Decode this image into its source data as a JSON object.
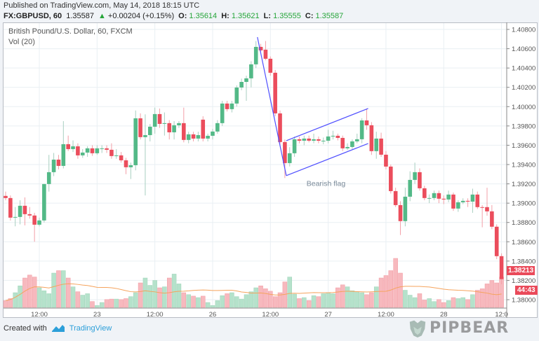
{
  "header": {
    "published": "Published on TradingView.com, May 14, 2018 18:15 UTC",
    "symbol": "FX:GBPUSD, 60",
    "last": "1.35587",
    "change_arrow": "▲",
    "change": "+0.00204 (+0.15%)",
    "o_label": "O:",
    "o": "1.35614",
    "h_label": "H:",
    "h": "1.35621",
    "l_label": "L:",
    "l": "1.35555",
    "c_label": "C:",
    "c": "1.35587"
  },
  "legend": {
    "title": "British Pound/U.S. Dollar, 60, FXCM",
    "volume": "Vol (20)"
  },
  "price_tag": "1.38213",
  "countdown": "44:43",
  "footer": {
    "created_with": "Created with",
    "brand": "TradingView"
  },
  "watermark": "PIPBEAR",
  "colors": {
    "up": "#53b987",
    "down": "#eb4d5c",
    "up_vol": "#b5e2cb",
    "down_vol": "#f7b9be",
    "vol_ma": "#f5a35c",
    "drawing": "#5050ff",
    "grid": "#e9eff3"
  },
  "chart_data": {
    "type": "candlestick",
    "ylim": [
      1.38,
      1.408
    ],
    "y_ticks": [
      "1.38000",
      "1.38200",
      "1.38400",
      "1.38600",
      "1.38800",
      "1.39000",
      "1.39200",
      "1.39400",
      "1.39600",
      "1.39800",
      "1.40000",
      "1.40200",
      "1.40400",
      "1.40600",
      "1.40800"
    ],
    "x_ticks": [
      {
        "label": "12:00",
        "bar": 7
      },
      {
        "label": "23",
        "bar": 19
      },
      {
        "label": "12:00",
        "bar": 31
      },
      {
        "label": "26",
        "bar": 43
      },
      {
        "label": "12:00",
        "bar": 55
      },
      {
        "label": "27",
        "bar": 67
      },
      {
        "label": "12:00",
        "bar": 79
      },
      {
        "label": "28",
        "bar": 91
      },
      {
        "label": "12:0",
        "bar": 103
      }
    ],
    "ohlc": [
      [
        1.39075,
        1.3912,
        1.3903,
        1.39053
      ],
      [
        1.39053,
        1.3908,
        1.3882,
        1.3885
      ],
      [
        1.3885,
        1.3896,
        1.3876,
        1.38857
      ],
      [
        1.38857,
        1.3903,
        1.3878,
        1.38973
      ],
      [
        1.38973,
        1.3906,
        1.3877,
        1.38886
      ],
      [
        1.38886,
        1.3896,
        1.3884,
        1.38872
      ],
      [
        1.38872,
        1.389,
        1.386,
        1.38777
      ],
      [
        1.38777,
        1.3885,
        1.3876,
        1.38821
      ],
      [
        1.38821,
        1.392,
        1.388,
        1.39198
      ],
      [
        1.39198,
        1.395,
        1.3912,
        1.39321
      ],
      [
        1.39321,
        1.3952,
        1.3928,
        1.39451
      ],
      [
        1.39451,
        1.395,
        1.3935,
        1.39386
      ],
      [
        1.39386,
        1.3985,
        1.3936,
        1.39611
      ],
      [
        1.39611,
        1.397,
        1.3954,
        1.3956
      ],
      [
        1.3956,
        1.3965,
        1.3953,
        1.39589
      ],
      [
        1.39589,
        1.3962,
        1.3946,
        1.39495
      ],
      [
        1.39495,
        1.3956,
        1.3947,
        1.39524
      ],
      [
        1.39524,
        1.3959,
        1.3948,
        1.39568
      ],
      [
        1.39568,
        1.396,
        1.3949,
        1.39517
      ],
      [
        1.39517,
        1.396,
        1.395,
        1.39568
      ],
      [
        1.39568,
        1.396,
        1.3952,
        1.39568
      ],
      [
        1.39568,
        1.396,
        1.3952,
        1.39553
      ],
      [
        1.39553,
        1.3962,
        1.3946,
        1.39488
      ],
      [
        1.39488,
        1.3956,
        1.3946,
        1.39495
      ],
      [
        1.39495,
        1.3953,
        1.3942,
        1.39444
      ],
      [
        1.39444,
        1.3947,
        1.393,
        1.39372
      ],
      [
        1.39372,
        1.3942,
        1.3925,
        1.39393
      ],
      [
        1.39393,
        1.3996,
        1.3934,
        1.39879
      ],
      [
        1.39879,
        1.3993,
        1.3966,
        1.39684
      ],
      [
        1.39684,
        1.3992,
        1.3908,
        1.39705
      ],
      [
        1.39705,
        1.3982,
        1.3964,
        1.39792
      ],
      [
        1.39792,
        1.3999,
        1.3972,
        1.39923
      ],
      [
        1.39923,
        1.3998,
        1.3978,
        1.39821
      ],
      [
        1.39821,
        1.3994,
        1.397,
        1.39829
      ],
      [
        1.39829,
        1.3986,
        1.3966,
        1.39734
      ],
      [
        1.39734,
        1.3985,
        1.3966,
        1.39807
      ],
      [
        1.39807,
        1.3985,
        1.3978,
        1.39829
      ],
      [
        1.39829,
        1.3999,
        1.3963,
        1.39655
      ],
      [
        1.39655,
        1.3974,
        1.3962,
        1.39713
      ],
      [
        1.39713,
        1.3974,
        1.3964,
        1.39669
      ],
      [
        1.39669,
        1.3974,
        1.3964,
        1.39705
      ],
      [
        1.39865,
        1.399,
        1.3964,
        1.39669
      ],
      [
        1.39669,
        1.3972,
        1.3964,
        1.39698
      ],
      [
        1.39698,
        1.3977,
        1.3966,
        1.39742
      ],
      [
        1.39742,
        1.3986,
        1.3972,
        1.39829
      ],
      [
        1.39829,
        1.4006,
        1.398,
        1.40032
      ],
      [
        1.40032,
        1.4006,
        1.3995,
        1.39974
      ],
      [
        1.39974,
        1.4006,
        1.3994,
        1.40032
      ],
      [
        1.40032,
        1.4022,
        1.4,
        1.40198
      ],
      [
        1.40198,
        1.4029,
        1.4017,
        1.40256
      ],
      [
        1.40256,
        1.4032,
        1.4006,
        1.40293
      ],
      [
        1.40293,
        1.4047,
        1.402,
        1.40438
      ],
      [
        1.40438,
        1.4068,
        1.404,
        1.40619
      ],
      [
        1.40619,
        1.4065,
        1.4056,
        1.40583
      ],
      [
        1.4059,
        1.4068,
        1.4048,
        1.40496
      ],
      [
        1.40496,
        1.4052,
        1.4032,
        1.40351
      ],
      [
        1.40351,
        1.4038,
        1.399,
        1.3993
      ],
      [
        1.3993,
        1.3996,
        1.396,
        1.39633
      ],
      [
        1.39633,
        1.3966,
        1.3926,
        1.39415
      ],
      [
        1.39415,
        1.3958,
        1.3938,
        1.39517
      ],
      [
        1.39517,
        1.3969,
        1.3948,
        1.39662
      ],
      [
        1.39662,
        1.3969,
        1.3962,
        1.39647
      ],
      [
        1.39647,
        1.397,
        1.396,
        1.39669
      ],
      [
        1.39669,
        1.397,
        1.3963,
        1.39647
      ],
      [
        1.39647,
        1.3972,
        1.3962,
        1.39662
      ],
      [
        1.39662,
        1.3969,
        1.3962,
        1.39647
      ],
      [
        1.39647,
        1.3968,
        1.3961,
        1.39647
      ],
      [
        1.39647,
        1.3976,
        1.3962,
        1.39691
      ],
      [
        1.39691,
        1.3975,
        1.3966,
        1.39698
      ],
      [
        1.39698,
        1.3972,
        1.3965,
        1.39676
      ],
      [
        1.39676,
        1.397,
        1.3954,
        1.39568
      ],
      [
        1.39568,
        1.3962,
        1.3955,
        1.39582
      ],
      [
        1.39582,
        1.3966,
        1.3956,
        1.3964
      ],
      [
        1.3964,
        1.3972,
        1.3962,
        1.39662
      ],
      [
        1.39662,
        1.3988,
        1.3962,
        1.39857
      ],
      [
        1.39857,
        1.3998,
        1.3976,
        1.39807
      ],
      [
        1.39807,
        1.3984,
        1.395,
        1.39539
      ],
      [
        1.39539,
        1.3974,
        1.3946,
        1.39669
      ],
      [
        1.39669,
        1.3973,
        1.3948,
        1.39502
      ],
      [
        1.39502,
        1.3954,
        1.3935,
        1.39379
      ],
      [
        1.39379,
        1.394,
        1.391,
        1.39125
      ],
      [
        1.39125,
        1.3916,
        1.3896,
        1.3898
      ],
      [
        1.3898,
        1.3902,
        1.3867,
        1.38814
      ],
      [
        1.38814,
        1.3916,
        1.3876,
        1.39067
      ],
      [
        1.39067,
        1.3933,
        1.3902,
        1.39241
      ],
      [
        1.39241,
        1.3942,
        1.392,
        1.39321
      ],
      [
        1.39321,
        1.3936,
        1.3913,
        1.39154
      ],
      [
        1.39154,
        1.3918,
        1.3903,
        1.39053
      ],
      [
        1.39053,
        1.3909,
        1.39,
        1.39053
      ],
      [
        1.39053,
        1.3913,
        1.3903,
        1.39104
      ],
      [
        1.39104,
        1.3913,
        1.39,
        1.39046
      ],
      [
        1.39046,
        1.3908,
        1.3899,
        1.39038
      ],
      [
        1.39038,
        1.3913,
        1.3901,
        1.39089
      ],
      [
        1.39089,
        1.3911,
        1.3892,
        1.38944
      ],
      [
        1.38944,
        1.3903,
        1.3891,
        1.39009
      ],
      [
        1.39009,
        1.3905,
        1.3899,
        1.39024
      ],
      [
        1.39024,
        1.3905,
        1.3896,
        1.39016
      ],
      [
        1.39016,
        1.3915,
        1.389,
        1.39089
      ],
      [
        1.39089,
        1.3912,
        1.3894,
        1.38959
      ],
      [
        1.38959,
        1.3898,
        1.3875,
        1.38955
      ],
      [
        1.38959,
        1.3916,
        1.3887,
        1.38915
      ],
      [
        1.38915,
        1.3898,
        1.3873,
        1.38756
      ],
      [
        1.38756,
        1.3878,
        1.3842,
        1.38451
      ],
      [
        1.38451,
        1.3848,
        1.3816,
        1.38213
      ]
    ],
    "volume": [
      14,
      18,
      30,
      44,
      60,
      66,
      62,
      40,
      34,
      28,
      70,
      75,
      75,
      60,
      42,
      32,
      25,
      28,
      12,
      4,
      10,
      16,
      17,
      17,
      16,
      18,
      22,
      30,
      50,
      60,
      45,
      55,
      40,
      42,
      60,
      68,
      48,
      30,
      26,
      23,
      20,
      23,
      10,
      4,
      14,
      24,
      28,
      30,
      22,
      17,
      26,
      32,
      40,
      44,
      38,
      33,
      22,
      30,
      52,
      62,
      27,
      18,
      20,
      14,
      24,
      22,
      28,
      30,
      28,
      40,
      46,
      42,
      34,
      32,
      30,
      26,
      30,
      42,
      60,
      65,
      75,
      100,
      70,
      35,
      25,
      20,
      28,
      15,
      18,
      12,
      16,
      10,
      14,
      20,
      18,
      20,
      16,
      26,
      35,
      38,
      48,
      55,
      50,
      62
    ],
    "volume_ma_period": 20,
    "drawings": [
      {
        "type": "line",
        "name": "flag-pole",
        "from": {
          "bar": 52.3,
          "price": 1.4072
        },
        "to": {
          "bar": 58.3,
          "price": 1.39285
        }
      },
      {
        "type": "line",
        "name": "flag-upper",
        "from": {
          "bar": 58.3,
          "price": 1.39647
        },
        "to": {
          "bar": 75.3,
          "price": 1.39981
        }
      },
      {
        "type": "line",
        "name": "flag-lower",
        "from": {
          "bar": 58.3,
          "price": 1.39285
        },
        "to": {
          "bar": 75.3,
          "price": 1.39618
        }
      }
    ],
    "annotation": {
      "text": "Bearish flag",
      "bar": 62.5,
      "price": 1.3918
    }
  }
}
